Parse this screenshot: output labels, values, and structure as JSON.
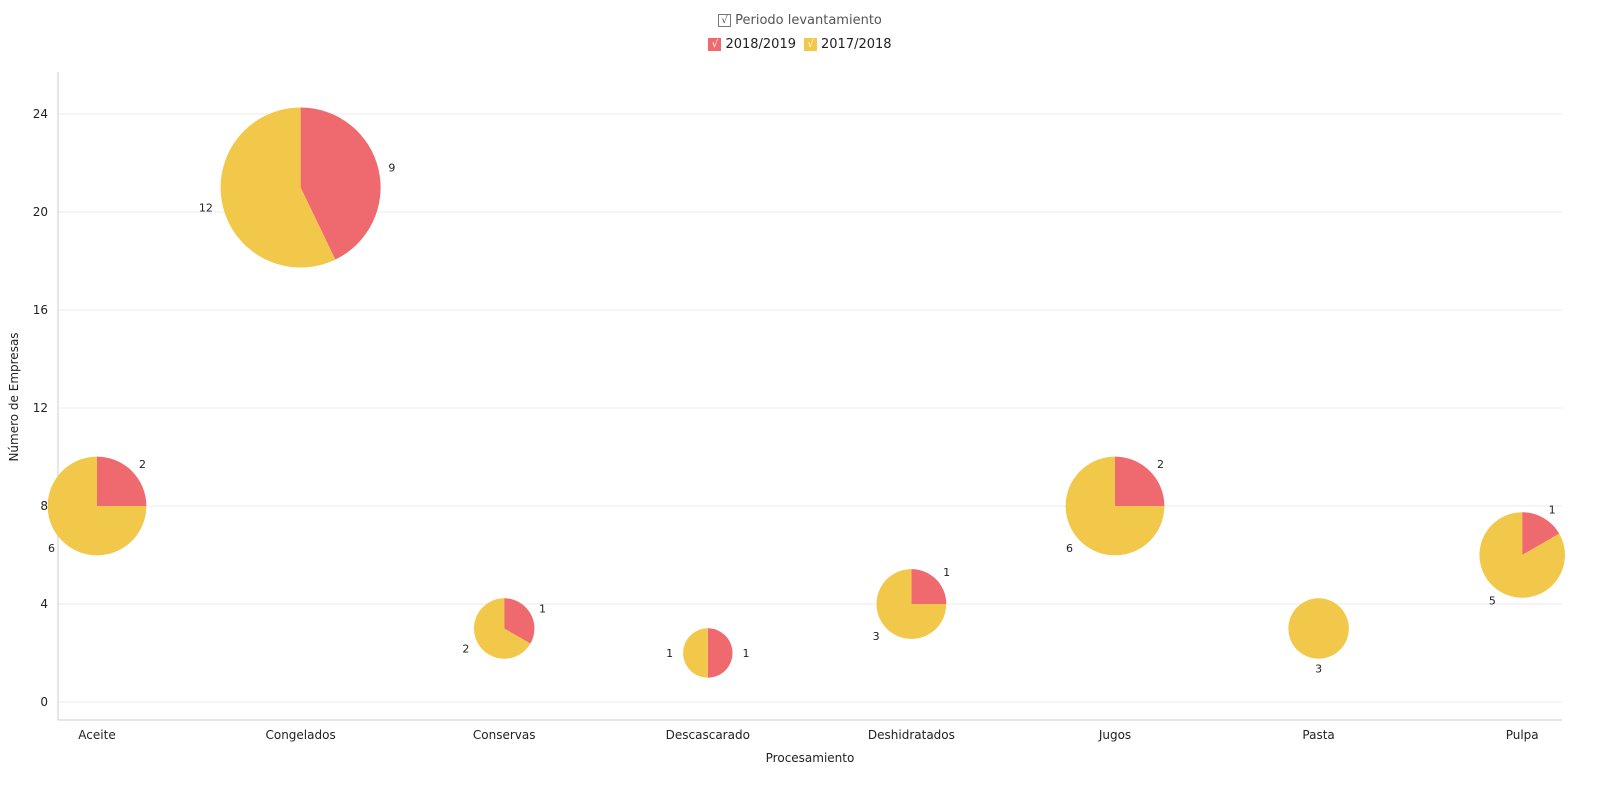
{
  "legend": {
    "title": "Periodo levantamiento",
    "check_mark": "√",
    "items": [
      {
        "label": "2018/2019",
        "color": "#EE6A6F"
      },
      {
        "label": "2017/2018",
        "color": "#F2C84B"
      }
    ]
  },
  "chart_data": {
    "type": "scatter",
    "subtype": "pie-bubble",
    "xlabel": "Procesamiento",
    "ylabel": "Número de Empresas",
    "categories": [
      "Aceite",
      "Congelados",
      "Conservas",
      "Descascarado",
      "Deshidratados",
      "Jugos",
      "Pasta",
      "Pulpa"
    ],
    "ylim": [
      0,
      26
    ],
    "yticks": [
      0,
      4,
      8,
      12,
      16,
      20,
      24
    ],
    "grid": true,
    "legend_position": "top-center",
    "series": [
      {
        "name": "2018/2019",
        "color": "#EE6A6F",
        "values": [
          2,
          9,
          1,
          1,
          1,
          2,
          0,
          1
        ]
      },
      {
        "name": "2017/2018",
        "color": "#F2C84B",
        "values": [
          6,
          12,
          2,
          1,
          3,
          6,
          3,
          5
        ]
      }
    ],
    "totals": [
      8,
      21,
      3,
      2,
      4,
      8,
      3,
      6
    ]
  }
}
